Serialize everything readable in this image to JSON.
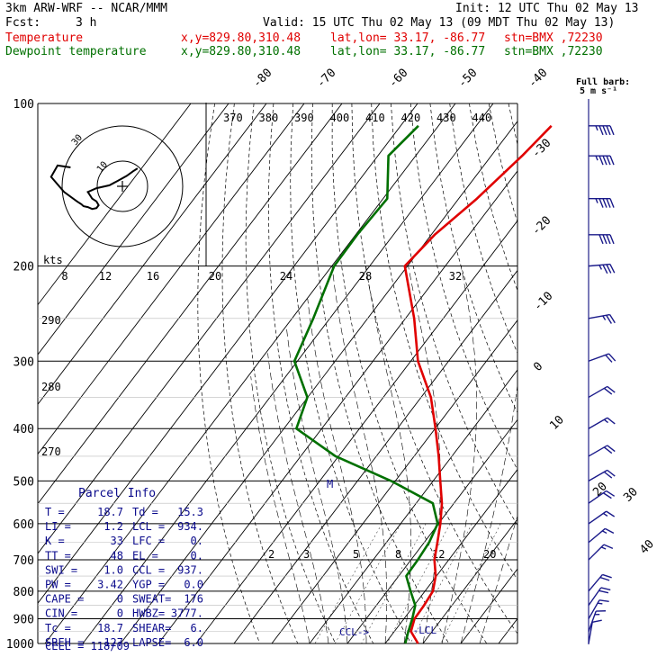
{
  "header": {
    "model": "3km ARW-WRF -- NCAR/MMM",
    "init": "Init: 12 UTC Thu 02 May 13",
    "fcst_label": "Fcst:",
    "fcst_value": "3 h",
    "valid": "Valid: 15 UTC Thu 02 May 13 (09 MDT Thu 02 May 13)",
    "temp_label": "Temperature",
    "dew_label": "Dewpoint temperature",
    "xy": "x,y=829.80,310.48",
    "latlon": "lat,lon= 33.17, -86.77",
    "stn": "stn=BMX ,72230"
  },
  "barb_legend": {
    "line1": "Full barb:",
    "line2": "5 m s⁻¹"
  },
  "hodograph": {
    "kts_label": "kts",
    "ring_labels": [
      "30",
      "10"
    ],
    "points": [
      [
        -24,
        -20
      ],
      [
        -30,
        -22
      ],
      [
        -33,
        -10
      ],
      [
        -27,
        6
      ],
      [
        -21,
        16
      ],
      [
        -19,
        19
      ],
      [
        -18,
        21
      ],
      [
        -16,
        22
      ],
      [
        -14,
        24
      ],
      [
        -12,
        23
      ],
      [
        -11,
        20
      ],
      [
        -12,
        16
      ],
      [
        -14,
        13
      ],
      [
        -16,
        6
      ],
      [
        -12,
        2
      ],
      [
        -6,
        -1
      ],
      [
        -2,
        -6
      ],
      [
        2,
        -11
      ],
      [
        5,
        -16
      ],
      [
        7,
        -19
      ]
    ]
  },
  "parcel_info": {
    "title": "Parcel Info",
    "rows": [
      [
        "T  =",
        "18.7",
        "Td =",
        "15.3"
      ],
      [
        "LI =",
        "1.2",
        "LCL =",
        "934."
      ],
      [
        "K  =",
        "33",
        "LFC =",
        "0."
      ],
      [
        "TT =",
        "48",
        "EL  =",
        "0."
      ],
      [
        "SWI =",
        "1.0",
        "CCL =",
        "937."
      ],
      [
        "PW =",
        "3.42",
        "YGP =",
        "0.0"
      ],
      [
        "CAPE =",
        "0",
        "SWEAT=",
        "176"
      ],
      [
        "CIN =",
        "0",
        "HWBZ=",
        "3777."
      ],
      [
        "Tc =",
        "18.7",
        "SHEAR=",
        "6."
      ],
      [
        "SREH =",
        "127",
        "LAPSE=",
        "6.0"
      ]
    ],
    "cell": "CELL = 118/09"
  },
  "chart_data": {
    "type": "line",
    "title": "",
    "pressure_levels": [
      100,
      200,
      300,
      400,
      500,
      600,
      700,
      800,
      900,
      1000
    ],
    "isotherm_labels": [
      "-80",
      "-70",
      "-60",
      "-50",
      "-40",
      "-30",
      "-20",
      "-10",
      "0",
      "10",
      "20",
      "30",
      "40"
    ],
    "isotherm_values": [
      -80,
      -70,
      -60,
      -50,
      -40,
      -30,
      -20,
      -10,
      0,
      10,
      20,
      30,
      40
    ],
    "theta_e_labels": [
      "370",
      "380",
      "390",
      "400",
      "410",
      "420",
      "430",
      "440"
    ],
    "theta_labels": [
      "290",
      "280",
      "270"
    ],
    "wind_speed_labels": [
      "8",
      "12",
      "16",
      "20",
      "24",
      "28",
      "32"
    ],
    "mixing_ratio_labels": [
      "2",
      "3",
      "5",
      "8",
      "12",
      "20"
    ],
    "annotations": [
      "M",
      "CCL",
      "LCL"
    ],
    "series": [
      {
        "name": "Temperature",
        "color": "#e00000",
        "points": [
          [
            110,
            -50.1
          ],
          [
            125,
            -51.8
          ],
          [
            150,
            -55.2
          ],
          [
            175,
            -59.1
          ],
          [
            200,
            -60.7
          ],
          [
            250,
            -47.7
          ],
          [
            300,
            -38.1
          ],
          [
            350,
            -27.4
          ],
          [
            400,
            -19.9
          ],
          [
            450,
            -13.5
          ],
          [
            500,
            -8.1
          ],
          [
            550,
            -3.2
          ],
          [
            600,
            0.5
          ],
          [
            650,
            3.5
          ],
          [
            700,
            6.2
          ],
          [
            750,
            9.8
          ],
          [
            800,
            12.1
          ],
          [
            850,
            12.6
          ],
          [
            900,
            12.8
          ],
          [
            950,
            14.4
          ],
          [
            1000,
            18.7
          ]
        ]
      },
      {
        "name": "Dewpoint temperature",
        "color": "#007000",
        "points": [
          [
            110,
            -85.3
          ],
          [
            125,
            -87.2
          ],
          [
            150,
            -78.9
          ],
          [
            175,
            -79.6
          ],
          [
            200,
            -79.4
          ],
          [
            250,
            -74.4
          ],
          [
            300,
            -70.8
          ],
          [
            350,
            -60.1
          ],
          [
            400,
            -56.7
          ],
          [
            450,
            -40.8
          ],
          [
            500,
            -21.1
          ],
          [
            550,
            -5.6
          ],
          [
            600,
            -0.2
          ],
          [
            650,
            1.3
          ],
          [
            700,
            1.8
          ],
          [
            750,
            2.0
          ],
          [
            800,
            6.2
          ],
          [
            850,
            10.3
          ],
          [
            900,
            12.2
          ],
          [
            950,
            13.7
          ],
          [
            1000,
            15.3
          ]
        ]
      }
    ],
    "wind_barbs_kt": [
      {
        "p": 110,
        "speed": 45,
        "dir": 270
      },
      {
        "p": 125,
        "speed": 45,
        "dir": 270
      },
      {
        "p": 150,
        "speed": 45,
        "dir": 270
      },
      {
        "p": 175,
        "speed": 40,
        "dir": 270
      },
      {
        "p": 200,
        "speed": 35,
        "dir": 265
      },
      {
        "p": 250,
        "speed": 25,
        "dir": 260
      },
      {
        "p": 300,
        "speed": 20,
        "dir": 250
      },
      {
        "p": 350,
        "speed": 20,
        "dir": 240
      },
      {
        "p": 400,
        "speed": 15,
        "dir": 240
      },
      {
        "p": 450,
        "speed": 20,
        "dir": 240
      },
      {
        "p": 500,
        "speed": 20,
        "dir": 240
      },
      {
        "p": 550,
        "speed": 20,
        "dir": 235
      },
      {
        "p": 600,
        "speed": 15,
        "dir": 235
      },
      {
        "p": 650,
        "speed": 15,
        "dir": 230
      },
      {
        "p": 700,
        "speed": 15,
        "dir": 225
      },
      {
        "p": 800,
        "speed": 20,
        "dir": 220
      },
      {
        "p": 850,
        "speed": 20,
        "dir": 215
      },
      {
        "p": 900,
        "speed": 15,
        "dir": 210
      },
      {
        "p": 950,
        "speed": 15,
        "dir": 200
      },
      {
        "p": 1000,
        "speed": 10,
        "dir": 190
      }
    ]
  }
}
